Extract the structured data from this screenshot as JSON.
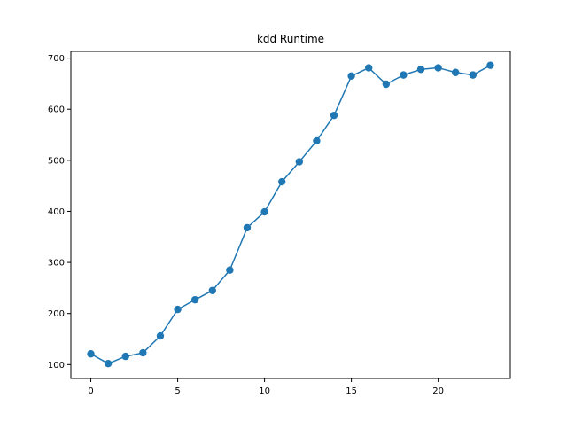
{
  "chart_data": {
    "type": "line",
    "title": "kdd Runtime",
    "xlabel": "",
    "ylabel": "",
    "x": [
      0,
      1,
      2,
      3,
      4,
      5,
      6,
      7,
      8,
      9,
      10,
      11,
      12,
      13,
      14,
      15,
      16,
      17,
      18,
      19,
      20,
      21,
      22,
      23
    ],
    "series": [
      {
        "values": [
          121,
          102,
          116,
          123,
          156,
          208,
          227,
          245,
          285,
          368,
          399,
          458,
          497,
          538,
          588,
          665,
          681,
          649,
          667,
          678,
          681,
          672,
          667,
          686
        ],
        "color": "#1f77b4",
        "marker": "circle"
      }
    ],
    "xlim": [
      -1.15,
      24.15
    ],
    "ylim": [
      72.8,
      713.2
    ],
    "xticks": [
      0,
      5,
      10,
      15,
      20
    ],
    "yticks": [
      100,
      200,
      300,
      400,
      500,
      600,
      700
    ],
    "grid": false,
    "legend": "none"
  }
}
